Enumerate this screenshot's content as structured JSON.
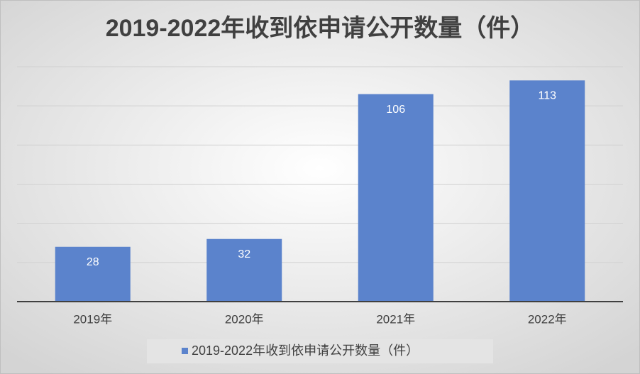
{
  "chart_data": {
    "type": "bar",
    "title": "2019-2022年收到依申请公开数量（件）",
    "categories": [
      "2019年",
      "2020年",
      "2021年",
      "2022年"
    ],
    "series": [
      {
        "name": "2019-2022年收到依申请公开数量（件）",
        "color": "#5b83cc",
        "values": [
          28,
          32,
          106,
          113
        ]
      }
    ],
    "ylim": [
      0,
      120
    ],
    "yticks": [
      0,
      20,
      40,
      60,
      80,
      100,
      120
    ],
    "grid": true,
    "legend": "bottom"
  }
}
